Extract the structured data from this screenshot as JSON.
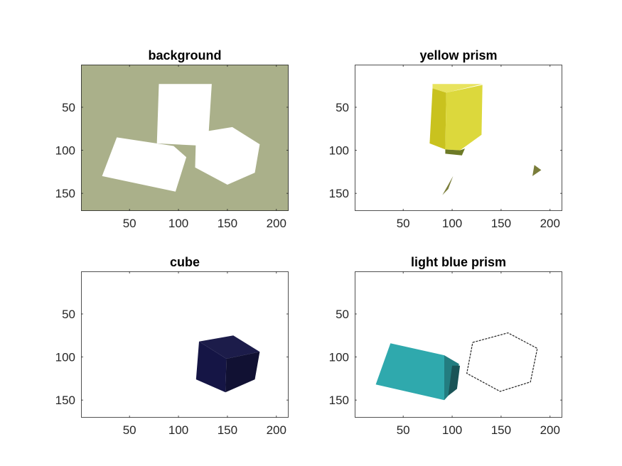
{
  "chart_data": [
    {
      "type": "image",
      "title": "background",
      "xlim": [
        0.5,
        212.5
      ],
      "ylim": [
        0.5,
        170.5
      ],
      "y_reversed": true,
      "xticks": [
        50,
        100,
        150,
        200
      ],
      "yticks": [
        50,
        100,
        150
      ],
      "background_color": "#aab08a",
      "mask_color": "#ffffff",
      "regions": [
        {
          "name": "yellow-prism-mask",
          "color": "#ffffff",
          "points": [
            [
              80,
              23
            ],
            [
              134,
              23
            ],
            [
              130,
              95
            ],
            [
              78,
              92
            ]
          ]
        },
        {
          "name": "light-blue-prism-mask",
          "color": "#ffffff",
          "points": [
            [
              37,
              85
            ],
            [
              95,
              95
            ],
            [
              108,
              108
            ],
            [
              97,
              148
            ],
            [
              22,
              130
            ]
          ]
        },
        {
          "name": "cube-mask",
          "color": "#ffffff",
          "points": [
            [
              118,
              80
            ],
            [
              155,
              73
            ],
            [
              183,
              93
            ],
            [
              178,
              126
            ],
            [
              150,
              140
            ],
            [
              117,
              120
            ]
          ]
        }
      ]
    },
    {
      "type": "image",
      "title": "yellow prism",
      "xlim": [
        0.5,
        212.5
      ],
      "ylim": [
        0.5,
        170.5
      ],
      "y_reversed": true,
      "xticks": [
        50,
        100,
        150,
        200
      ],
      "yticks": [
        50,
        100,
        150
      ],
      "background_color": "#ffffff",
      "regions": [
        {
          "name": "prism-front-face",
          "color": "#c9c21e",
          "points": [
            [
              80,
              28
            ],
            [
              94,
              33
            ],
            [
              93,
              99
            ],
            [
              77,
              92
            ]
          ]
        },
        {
          "name": "prism-side-face",
          "color": "#dcd83c",
          "points": [
            [
              94,
              33
            ],
            [
              131,
              24
            ],
            [
              130,
              82
            ],
            [
              108,
              100
            ],
            [
              93,
              99
            ]
          ]
        },
        {
          "name": "prism-top-face",
          "color": "#e8e35e",
          "points": [
            [
              80,
              23
            ],
            [
              131,
              23
            ],
            [
              94,
              33
            ],
            [
              80,
              28
            ]
          ]
        },
        {
          "name": "prism-shadow",
          "color": "#6d7a26",
          "points": [
            [
              93,
              99
            ],
            [
              108,
              100
            ],
            [
              113,
              98
            ],
            [
              110,
              106
            ],
            [
              93,
              104
            ]
          ]
        },
        {
          "name": "stray-sliver-left",
          "color": "#7a7d3a",
          "points": [
            [
              90,
              152
            ],
            [
              101,
              130
            ],
            [
              96,
              145
            ]
          ]
        },
        {
          "name": "stray-sliver-right",
          "color": "#7a7d3a",
          "points": [
            [
              184,
              117
            ],
            [
              191,
              123
            ],
            [
              182,
              130
            ]
          ]
        }
      ]
    },
    {
      "type": "image",
      "title": "cube",
      "xlim": [
        0.5,
        212.5
      ],
      "ylim": [
        0.5,
        170.5
      ],
      "y_reversed": true,
      "xticks": [
        50,
        100,
        150,
        200
      ],
      "yticks": [
        50,
        100,
        150
      ],
      "background_color": "#ffffff",
      "regions": [
        {
          "name": "cube-top-face",
          "color": "#1c1c4a",
          "points": [
            [
              121,
              82
            ],
            [
              156,
              75
            ],
            [
              183,
              94
            ],
            [
              149,
              102
            ]
          ]
        },
        {
          "name": "cube-left-face",
          "color": "#151545",
          "points": [
            [
              121,
              82
            ],
            [
              149,
              102
            ],
            [
              148,
              141
            ],
            [
              118,
              126
            ]
          ]
        },
        {
          "name": "cube-right-face",
          "color": "#111133",
          "points": [
            [
              149,
              102
            ],
            [
              183,
              94
            ],
            [
              178,
              126
            ],
            [
              148,
              141
            ]
          ]
        }
      ]
    },
    {
      "type": "image",
      "title": "light blue prism",
      "xlim": [
        0.5,
        212.5
      ],
      "ylim": [
        0.5,
        170.5
      ],
      "y_reversed": true,
      "xticks": [
        50,
        100,
        150,
        200
      ],
      "yticks": [
        50,
        100,
        150
      ],
      "background_color": "#ffffff",
      "regions": [
        {
          "name": "prism-main-face",
          "color": "#2fa9ad",
          "points": [
            [
              37,
              84
            ],
            [
              92,
              98
            ],
            [
              92,
              150
            ],
            [
              22,
              132
            ]
          ]
        },
        {
          "name": "prism-end-face",
          "color": "#237d80",
          "points": [
            [
              92,
              98
            ],
            [
              107,
              108
            ],
            [
              104,
              135
            ],
            [
              92,
              150
            ]
          ]
        },
        {
          "name": "prism-end-shadow",
          "color": "#1a5457",
          "points": [
            [
              100,
              110
            ],
            [
              108,
              110
            ],
            [
              105,
              137
            ],
            [
              96,
              145
            ]
          ]
        }
      ],
      "outline": {
        "name": "cube-outline",
        "color": "#222222",
        "points": [
          [
            121,
            83
          ],
          [
            157,
            72
          ],
          [
            187,
            90
          ],
          [
            180,
            129
          ],
          [
            149,
            140
          ],
          [
            115,
            119
          ],
          [
            121,
            83
          ]
        ]
      }
    }
  ]
}
